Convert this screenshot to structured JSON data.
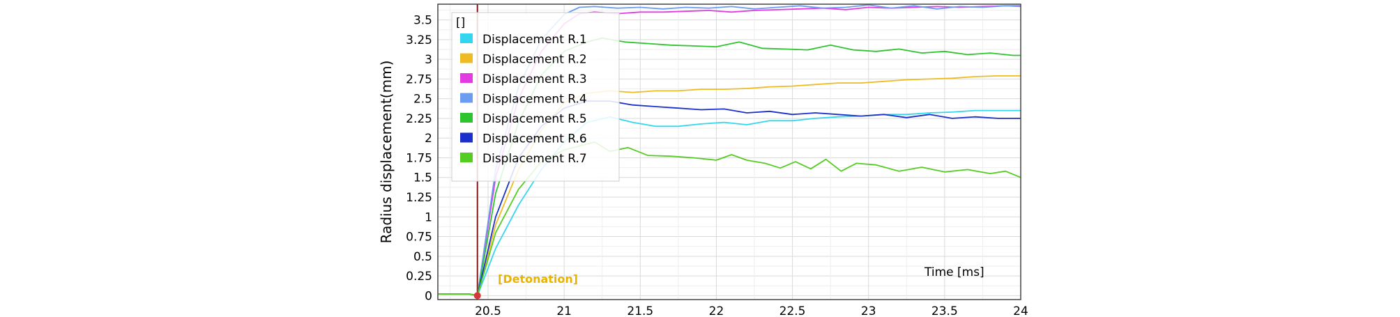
{
  "chart_data": {
    "type": "line",
    "ylabel": "Radius displacement(mm)",
    "xlabel": "Time [ms]",
    "legend_title": "[]",
    "legend_position": "top-left",
    "grid": true,
    "xlim": [
      20.17,
      24.0
    ],
    "ylim": [
      -0.05,
      3.7
    ],
    "x_ticks": [
      "20.5",
      "21",
      "21.5",
      "22",
      "22.5",
      "23",
      "23.5",
      "24"
    ],
    "x_tick_values": [
      20.5,
      21,
      21.5,
      22,
      22.5,
      23,
      23.5,
      24
    ],
    "y_ticks": [
      "0",
      "0.25",
      "0.5",
      "0.75",
      "1",
      "1.25",
      "1.5",
      "1.75",
      "2",
      "2.25",
      "2.5",
      "2.75",
      "3",
      "3.25",
      "3.5"
    ],
    "y_tick_values": [
      0,
      0.25,
      0.5,
      0.75,
      1,
      1.25,
      1.5,
      1.75,
      2,
      2.25,
      2.5,
      2.75,
      3,
      3.25,
      3.5
    ],
    "annotation": {
      "text": "[Detonation]",
      "x": 20.43
    },
    "series": [
      {
        "name": "Displacement R.1",
        "color": "#33d6ee",
        "x": [
          20.17,
          20.38,
          20.43,
          20.55,
          20.7,
          20.85,
          21.0,
          21.15,
          21.3,
          21.45,
          21.6,
          21.75,
          21.9,
          22.05,
          22.2,
          22.35,
          22.5,
          22.65,
          22.8,
          22.95,
          23.1,
          23.25,
          23.4,
          23.55,
          23.7,
          23.85,
          24.0
        ],
        "y": [
          0.02,
          0.02,
          0.0,
          0.6,
          1.15,
          1.6,
          1.95,
          2.2,
          2.27,
          2.2,
          2.15,
          2.15,
          2.18,
          2.2,
          2.17,
          2.22,
          2.22,
          2.25,
          2.27,
          2.28,
          2.3,
          2.3,
          2.32,
          2.33,
          2.35,
          2.35,
          2.35
        ]
      },
      {
        "name": "Displacement R.2",
        "color": "#eebb22",
        "x": [
          20.17,
          20.38,
          20.43,
          20.55,
          20.7,
          20.85,
          21.0,
          21.15,
          21.3,
          21.45,
          21.6,
          21.75,
          21.9,
          22.05,
          22.2,
          22.35,
          22.5,
          22.65,
          22.8,
          22.95,
          23.1,
          23.25,
          23.4,
          23.55,
          23.7,
          23.85,
          24.0
        ],
        "y": [
          0.02,
          0.02,
          0.0,
          0.9,
          1.6,
          2.1,
          2.45,
          2.57,
          2.6,
          2.58,
          2.6,
          2.6,
          2.62,
          2.62,
          2.63,
          2.65,
          2.66,
          2.68,
          2.7,
          2.7,
          2.72,
          2.74,
          2.75,
          2.76,
          2.78,
          2.79,
          2.79
        ]
      },
      {
        "name": "Displacement R.3",
        "color": "#e23be2",
        "x": [
          20.17,
          20.38,
          20.43,
          20.55,
          20.7,
          20.85,
          21.0,
          21.1,
          21.2,
          21.35,
          21.5,
          21.65,
          21.8,
          21.95,
          22.1,
          22.25,
          22.4,
          22.55,
          22.7,
          22.85,
          23.0,
          23.15,
          23.3,
          23.45,
          23.6,
          23.75,
          23.9,
          24.0
        ],
        "y": [
          0.02,
          0.02,
          0.0,
          1.5,
          2.5,
          3.1,
          3.45,
          3.58,
          3.6,
          3.58,
          3.6,
          3.6,
          3.61,
          3.62,
          3.6,
          3.62,
          3.63,
          3.64,
          3.65,
          3.63,
          3.66,
          3.65,
          3.66,
          3.67,
          3.66,
          3.67,
          3.68,
          3.68
        ]
      },
      {
        "name": "Displacement R.4",
        "color": "#6a9cf0",
        "x": [
          20.17,
          20.38,
          20.43,
          20.55,
          20.7,
          20.85,
          21.0,
          21.1,
          21.2,
          21.35,
          21.5,
          21.65,
          21.8,
          21.95,
          22.1,
          22.25,
          22.4,
          22.55,
          22.7,
          22.85,
          23.0,
          23.15,
          23.3,
          23.45,
          23.6,
          23.75,
          23.9,
          24.0
        ],
        "y": [
          0.02,
          0.02,
          0.0,
          1.6,
          2.65,
          3.25,
          3.57,
          3.66,
          3.67,
          3.65,
          3.66,
          3.64,
          3.66,
          3.65,
          3.67,
          3.64,
          3.66,
          3.68,
          3.65,
          3.66,
          3.69,
          3.65,
          3.68,
          3.64,
          3.67,
          3.66,
          3.68,
          3.67
        ]
      },
      {
        "name": "Displacement R.5",
        "color": "#2ec42e",
        "x": [
          20.17,
          20.38,
          20.43,
          20.55,
          20.7,
          20.85,
          21.0,
          21.15,
          21.25,
          21.4,
          21.55,
          21.7,
          21.85,
          22.0,
          22.15,
          22.3,
          22.45,
          22.6,
          22.75,
          22.9,
          23.05,
          23.2,
          23.35,
          23.5,
          23.65,
          23.8,
          23.95,
          24.0
        ],
        "y": [
          0.02,
          0.02,
          0.0,
          1.3,
          2.2,
          2.8,
          3.1,
          3.22,
          3.27,
          3.22,
          3.2,
          3.18,
          3.17,
          3.16,
          3.22,
          3.14,
          3.13,
          3.12,
          3.18,
          3.12,
          3.1,
          3.13,
          3.08,
          3.1,
          3.06,
          3.08,
          3.05,
          3.05
        ]
      },
      {
        "name": "Displacement R.6",
        "color": "#1a2fcc",
        "x": [
          20.17,
          20.38,
          20.43,
          20.55,
          20.7,
          20.85,
          21.0,
          21.15,
          21.3,
          21.45,
          21.6,
          21.75,
          21.9,
          22.05,
          22.2,
          22.35,
          22.5,
          22.65,
          22.8,
          22.95,
          23.1,
          23.25,
          23.4,
          23.55,
          23.7,
          23.85,
          24.0
        ],
        "y": [
          0.02,
          0.02,
          0.0,
          1.0,
          1.75,
          2.15,
          2.38,
          2.47,
          2.47,
          2.42,
          2.4,
          2.38,
          2.36,
          2.37,
          2.32,
          2.34,
          2.3,
          2.32,
          2.3,
          2.28,
          2.3,
          2.26,
          2.3,
          2.25,
          2.27,
          2.25,
          2.25
        ]
      },
      {
        "name": "Displacement R.7",
        "color": "#55cc22",
        "x": [
          20.17,
          20.38,
          20.43,
          20.55,
          20.7,
          20.85,
          21.0,
          21.1,
          21.2,
          21.3,
          21.42,
          21.55,
          21.7,
          21.85,
          22.0,
          22.1,
          22.2,
          22.32,
          22.42,
          22.52,
          22.62,
          22.72,
          22.82,
          22.92,
          23.05,
          23.2,
          23.35,
          23.5,
          23.65,
          23.8,
          23.9,
          24.0
        ],
        "y": [
          0.02,
          0.02,
          0.0,
          0.8,
          1.35,
          1.7,
          1.85,
          1.9,
          1.95,
          1.83,
          1.88,
          1.78,
          1.77,
          1.75,
          1.72,
          1.79,
          1.72,
          1.68,
          1.62,
          1.7,
          1.61,
          1.73,
          1.58,
          1.68,
          1.66,
          1.58,
          1.63,
          1.57,
          1.6,
          1.55,
          1.58,
          1.5
        ]
      }
    ]
  }
}
